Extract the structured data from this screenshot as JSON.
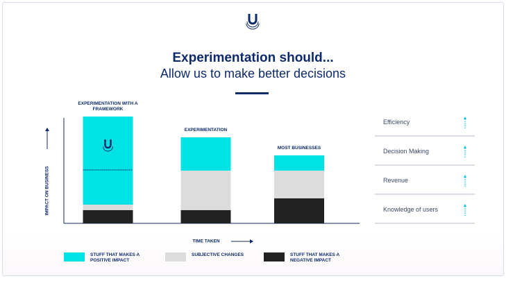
{
  "chart_data": {
    "type": "bar",
    "stacked": true,
    "title": "Experimentation should...",
    "subtitle": "Allow us to make better decisions",
    "x_label": "TIME TAKEN",
    "y_label": "IMPACT ON BUSINESS",
    "categories": [
      "EXPERIMENTATION WITH A FRAMEWORK",
      "EXPERIMENTATION",
      "MOST BUSINESSES"
    ],
    "series": [
      {
        "name": "STUFF THAT MAKES A POSITIVE IMPACT",
        "color": "#00e3e6",
        "values": [
          127,
          48,
          22
        ]
      },
      {
        "name": "SUBJECTIVE CHANGES",
        "color": "#dcdcdc",
        "values": [
          8,
          57,
          40
        ]
      },
      {
        "name": "STUFF THAT MAKES A NEGATIVE IMPACT",
        "color": "#222222",
        "values": [
          19,
          19,
          36
        ]
      }
    ],
    "ylim": [
      0,
      160
    ]
  },
  "outcomes": [
    "Efficiency",
    "Decision Making",
    "Revenue",
    "Knowledge of users"
  ]
}
